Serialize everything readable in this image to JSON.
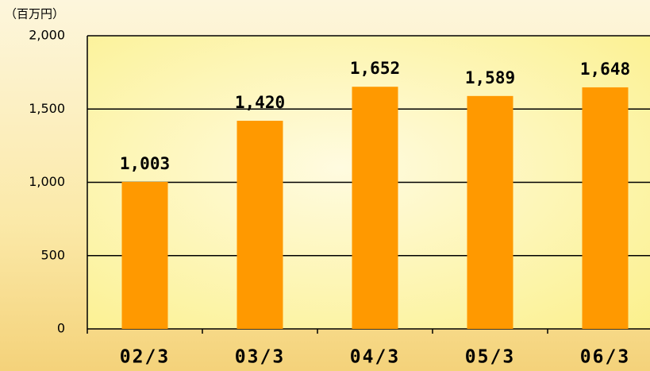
{
  "chart_data": {
    "type": "bar",
    "y_label": "（百万円）",
    "categories": [
      "02/3",
      "03/3",
      "04/3",
      "05/3",
      "06/3"
    ],
    "values": [
      1003,
      1420,
      1652,
      1589,
      1648
    ],
    "value_labels": [
      "1,003",
      "1,420",
      "1,652",
      "1,589",
      "1,648"
    ],
    "color": "#ff9900",
    "ylim": [
      0,
      2000
    ],
    "yticks": [
      0,
      500,
      {
        "value": 1000,
        "label": "1,000"
      },
      {
        "value": 1500,
        "label": "1,500"
      },
      {
        "value": 2000,
        "label": "2,000"
      }
    ],
    "grid": true
  }
}
